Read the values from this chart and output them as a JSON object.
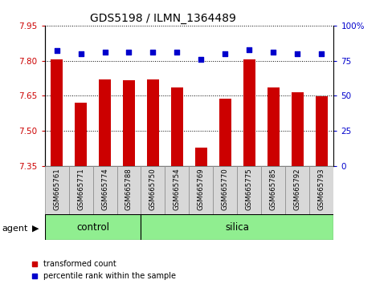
{
  "title": "GDS5198 / ILMN_1364489",
  "samples": [
    "GSM665761",
    "GSM665771",
    "GSM665774",
    "GSM665788",
    "GSM665750",
    "GSM665754",
    "GSM665769",
    "GSM665770",
    "GSM665775",
    "GSM665785",
    "GSM665792",
    "GSM665793"
  ],
  "transformed_counts": [
    7.804,
    7.622,
    7.72,
    7.715,
    7.72,
    7.685,
    7.43,
    7.637,
    7.804,
    7.685,
    7.665,
    7.648
  ],
  "percentile_ranks": [
    82,
    80,
    81,
    81,
    81,
    81,
    76,
    80,
    83,
    81,
    80,
    80
  ],
  "control_indices": [
    0,
    1,
    2,
    3
  ],
  "silica_indices": [
    4,
    5,
    6,
    7,
    8,
    9,
    10,
    11
  ],
  "ylim_left": [
    7.35,
    7.95
  ],
  "ylim_right": [
    0,
    100
  ],
  "yticks_left": [
    7.35,
    7.5,
    7.65,
    7.8,
    7.95
  ],
  "yticks_right": [
    0,
    25,
    50,
    75,
    100
  ],
  "bar_color": "#cc0000",
  "dot_color": "#0000cc",
  "control_color": "#90EE90",
  "tick_color_left": "#cc0000",
  "tick_color_right": "#0000cc",
  "bar_width": 0.5,
  "baseline": 7.35
}
